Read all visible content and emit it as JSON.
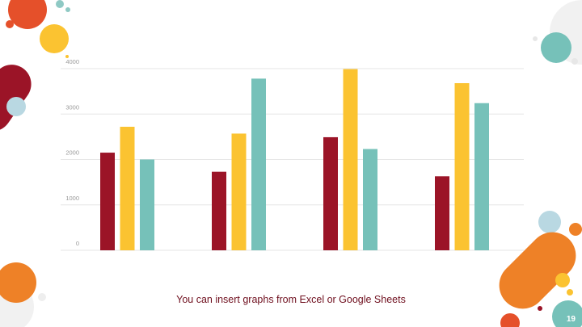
{
  "chart_data": {
    "type": "bar",
    "categories": [
      "",
      "",
      "",
      ""
    ],
    "series": [
      {
        "values": [
          2150,
          1730,
          2490,
          1630
        ]
      },
      {
        "values": [
          2720,
          2570,
          3990,
          3680
        ]
      },
      {
        "values": [
          2000,
          3780,
          2230,
          3240
        ]
      }
    ],
    "ylim": [
      0,
      4000
    ],
    "yticks": [
      0,
      1000,
      2000,
      3000,
      4000
    ],
    "grid": true,
    "title": "",
    "xlabel": "",
    "ylabel": ""
  },
  "colors": {
    "series": [
      "#9b1427",
      "#fbc331",
      "#76c1b9"
    ],
    "grid": "#e6e6e6",
    "tick_text": "#9a9a9a"
  },
  "caption": "You can insert graphs from Excel or Google Sheets",
  "slide_number": "19"
}
